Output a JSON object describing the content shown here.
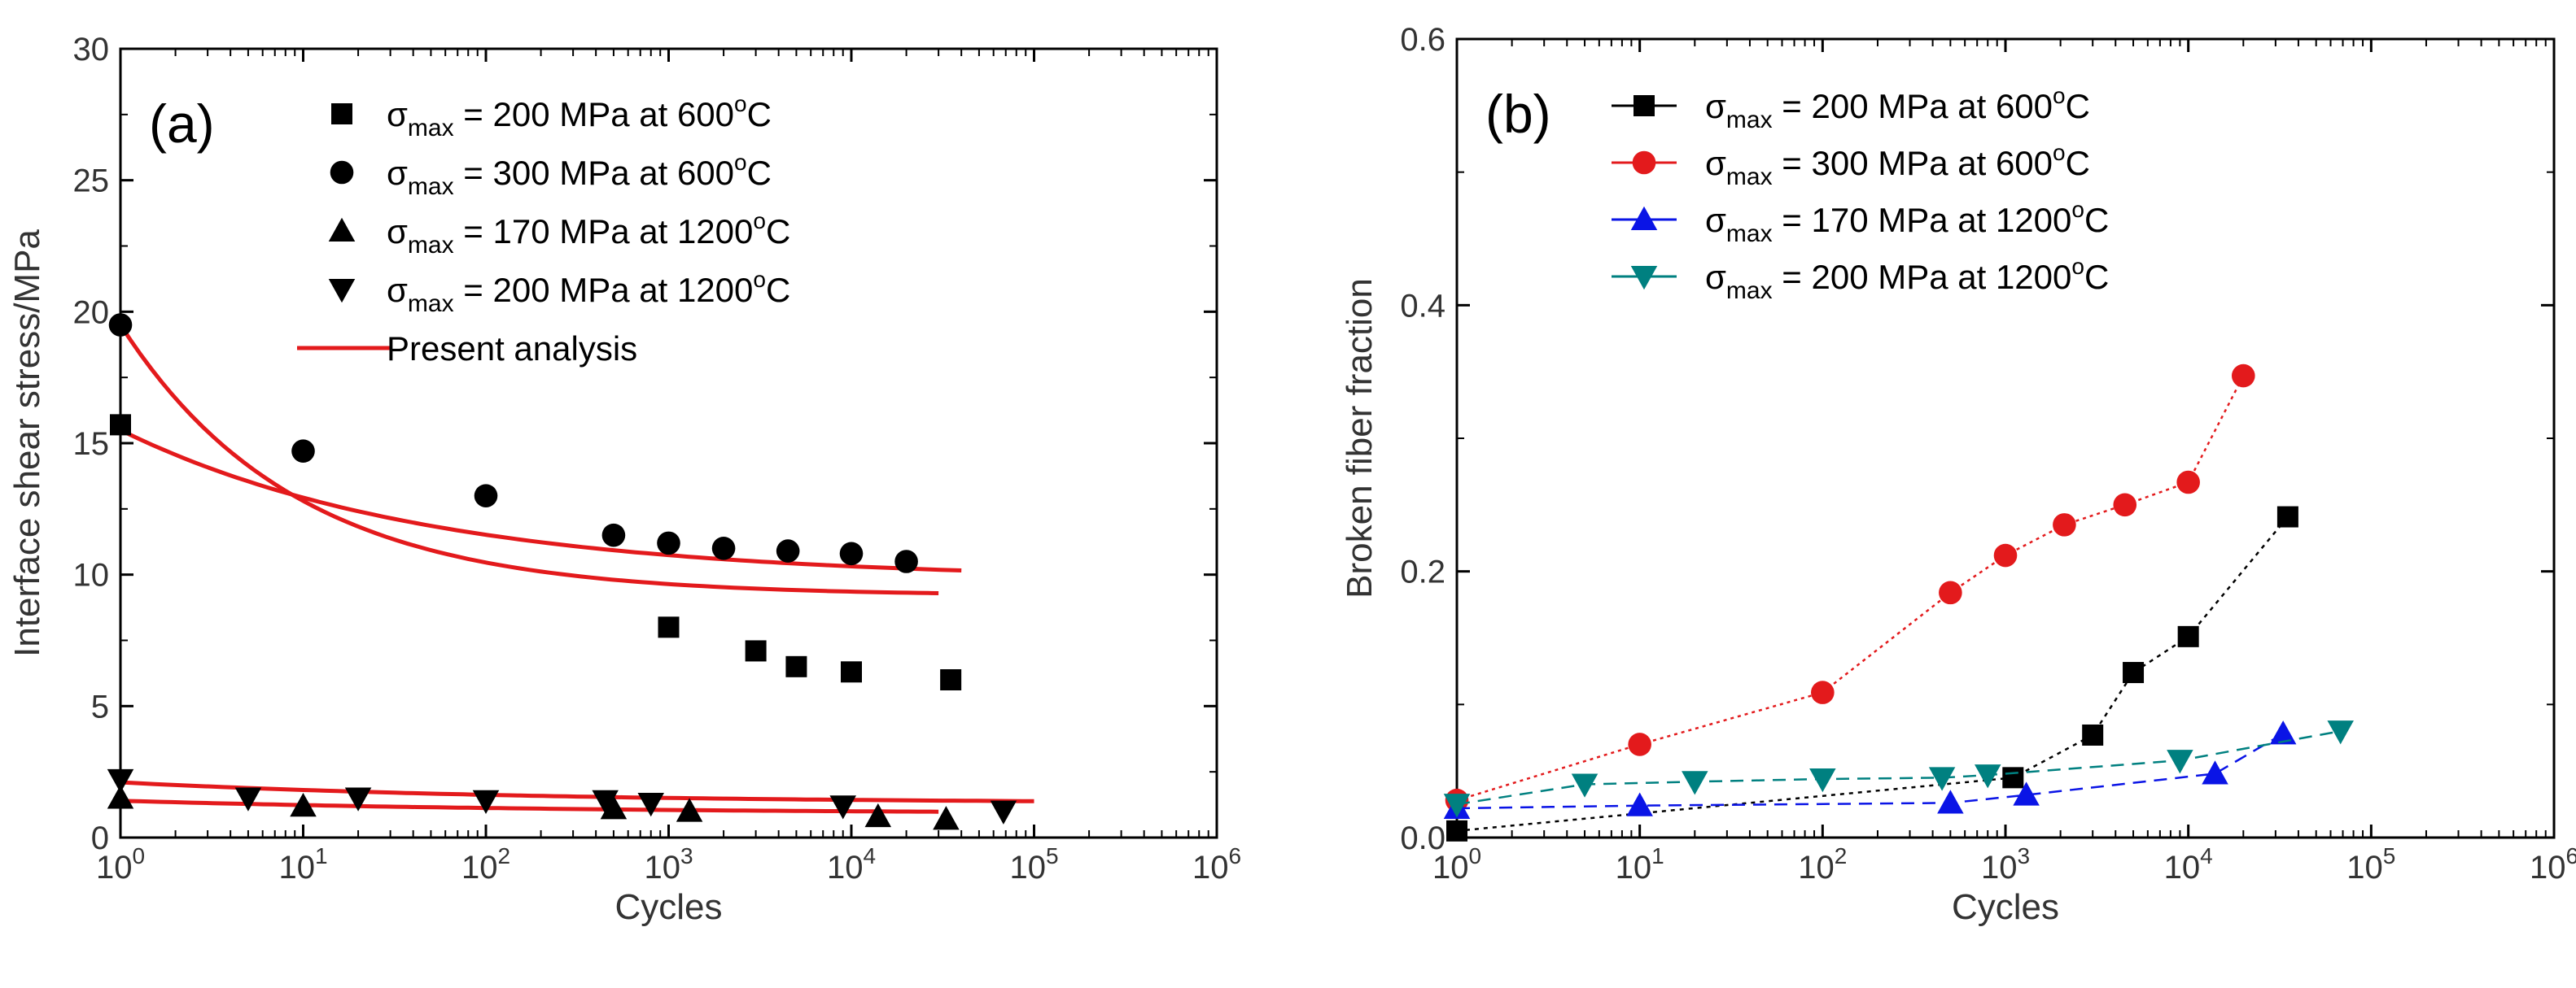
{
  "chart_data": [
    {
      "type": "scatter",
      "panel_label": "(a)",
      "xscale": "log",
      "xlim_exp": [
        0,
        6
      ],
      "xticks_exp": [
        0,
        1,
        2,
        3,
        4,
        5,
        6
      ],
      "ylim": [
        0,
        30
      ],
      "yticks": [
        0,
        5,
        10,
        15,
        20,
        25,
        30
      ],
      "xlabel": "Cycles",
      "ylabel": "Interface shear stress/MPa",
      "series": [
        {
          "id": "a1",
          "marker": "square",
          "color": "#000000",
          "legend": {
            "sym": "σ",
            "sub": "max",
            "text": " = 200 MPa at 600",
            "sup": "o",
            "unit": "C"
          },
          "points": [
            [
              1,
              15.7
            ],
            [
              1000,
              8.0
            ],
            [
              3000,
              7.1
            ],
            [
              5000,
              6.5
            ],
            [
              10000,
              6.3
            ],
            [
              35000,
              6.0
            ]
          ]
        },
        {
          "id": "a2",
          "marker": "circle",
          "color": "#000000",
          "legend": {
            "sym": "σ",
            "sub": "max",
            "text": " = 300 MPa at 600",
            "sup": "o",
            "unit": "C"
          },
          "points": [
            [
              1,
              19.5
            ],
            [
              10,
              14.7
            ],
            [
              100,
              13.0
            ],
            [
              500,
              11.5
            ],
            [
              1000,
              11.2
            ],
            [
              2000,
              11.0
            ],
            [
              4500,
              10.9
            ],
            [
              10000,
              10.8
            ],
            [
              20000,
              10.5
            ]
          ]
        },
        {
          "id": "a3",
          "marker": "triangle-up",
          "color": "#000000",
          "legend": {
            "sym": "σ",
            "sub": "max",
            "text": " = 170 MPa at 1200",
            "sup": "o",
            "unit": "C"
          },
          "points": [
            [
              1,
              1.5
            ],
            [
              10,
              1.2
            ],
            [
              500,
              1.1
            ],
            [
              1300,
              1.0
            ],
            [
              14000,
              0.8
            ],
            [
              33000,
              0.7
            ]
          ]
        },
        {
          "id": "a4",
          "marker": "triangle-down",
          "color": "#000000",
          "legend": {
            "sym": "σ",
            "sub": "max",
            "text": " = 200 MPa at 1200",
            "sup": "o",
            "unit": "C"
          },
          "points": [
            [
              1,
              2.2
            ],
            [
              5,
              1.5
            ],
            [
              20,
              1.5
            ],
            [
              100,
              1.4
            ],
            [
              450,
              1.4
            ],
            [
              800,
              1.3
            ],
            [
              9000,
              1.2
            ],
            [
              68000,
              1.0
            ]
          ]
        }
      ],
      "fit_legend": "Present analysis",
      "fit_color": "#e31a1c",
      "fits": [
        {
          "A": 9.2,
          "B": 10.3,
          "k": 1.05,
          "xmax": 30000
        },
        {
          "A": 9.8,
          "B": 5.7,
          "k": 0.6,
          "xmax": 40000
        },
        {
          "A": 1.3,
          "B": 0.8,
          "k": 0.45,
          "xmax": 100000
        },
        {
          "A": 0.9,
          "B": 0.5,
          "k": 0.4,
          "xmax": 30000
        }
      ]
    },
    {
      "type": "line",
      "panel_label": "(b)",
      "xscale": "log",
      "xlim_exp": [
        0,
        6
      ],
      "xticks_exp": [
        0,
        1,
        2,
        3,
        4,
        5,
        6
      ],
      "ylim": [
        0,
        0.6
      ],
      "yticks": [
        0.0,
        0.2,
        0.4,
        0.6
      ],
      "ytick_labels": [
        "0.0",
        "0.2",
        "0.4",
        "0.6"
      ],
      "xlabel": "Cycles",
      "ylabel": "Broken fiber fraction",
      "series": [
        {
          "id": "b1",
          "marker": "square",
          "color": "#000000",
          "legend": {
            "sym": "σ",
            "sub": "max",
            "text": " = 200 MPa at 600",
            "sup": "o",
            "unit": "C"
          },
          "points": [
            [
              1,
              0.005
            ],
            [
              1100,
              0.045
            ],
            [
              3000,
              0.077
            ],
            [
              5000,
              0.124
            ],
            [
              10000,
              0.151
            ],
            [
              35000,
              0.241
            ]
          ]
        },
        {
          "id": "b2",
          "marker": "circle",
          "color": "#e31a1c",
          "legend": {
            "sym": "σ",
            "sub": "max",
            "text": " = 300 MPa at 600",
            "sup": "o",
            "unit": "C"
          },
          "points": [
            [
              1,
              0.028
            ],
            [
              10,
              0.07
            ],
            [
              100,
              0.109
            ],
            [
              500,
              0.184
            ],
            [
              1000,
              0.212
            ],
            [
              2100,
              0.235
            ],
            [
              4500,
              0.25
            ],
            [
              10000,
              0.267
            ],
            [
              20000,
              0.347
            ]
          ]
        },
        {
          "id": "b3",
          "marker": "triangle-up",
          "color": "#0a14e6",
          "legend": {
            "sym": "σ",
            "sub": "max",
            "text": " = 170 MPa at 1200",
            "sup": "o",
            "unit": "C"
          },
          "points": [
            [
              1,
              0.022
            ],
            [
              10,
              0.024
            ],
            [
              500,
              0.026
            ],
            [
              1300,
              0.032
            ],
            [
              14000,
              0.048
            ],
            [
              33000,
              0.078
            ]
          ]
        },
        {
          "id": "b4",
          "marker": "triangle-down",
          "color": "#008080",
          "legend": {
            "sym": "σ",
            "sub": "max",
            "text": " = 200 MPa at 1200",
            "sup": "o",
            "unit": "C"
          },
          "points": [
            [
              1,
              0.025
            ],
            [
              5,
              0.04
            ],
            [
              20,
              0.042
            ],
            [
              100,
              0.044
            ],
            [
              450,
              0.045
            ],
            [
              800,
              0.047
            ],
            [
              9000,
              0.058
            ],
            [
              68000,
              0.08
            ]
          ]
        }
      ]
    }
  ]
}
